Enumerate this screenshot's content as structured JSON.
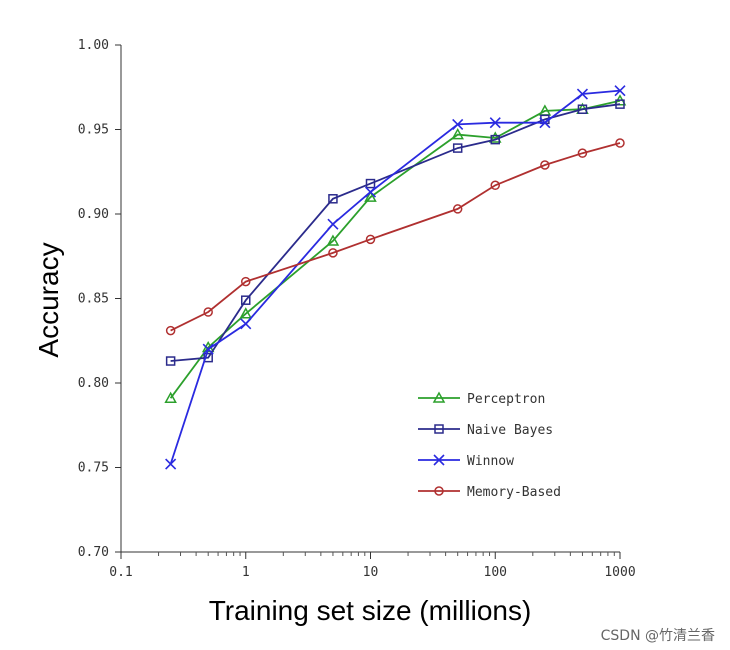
{
  "chart_data": {
    "type": "line",
    "title": "",
    "xlabel": "Training set size (millions)",
    "ylabel": "Accuracy",
    "x_scale": "log",
    "xlim": [
      0.1,
      1000
    ],
    "ylim": [
      0.7,
      1.0
    ],
    "x_ticks": [
      "0.1",
      "1",
      "10",
      "100",
      "1000"
    ],
    "y_ticks": [
      "0.70",
      "0.75",
      "0.80",
      "0.85",
      "0.90",
      "0.95",
      "1.00"
    ],
    "grid": false,
    "legend_position": "lower-right",
    "series": [
      {
        "name": "Perceptron",
        "color": "#2ca02c",
        "marker": "triangle",
        "x": [
          0.25,
          0.5,
          1,
          5,
          10,
          50,
          100,
          250,
          500,
          1000
        ],
        "y": [
          0.791,
          0.821,
          0.841,
          0.884,
          0.91,
          0.947,
          0.945,
          0.961,
          0.962,
          0.967
        ]
      },
      {
        "name": "Naive Bayes",
        "color": "#2b2b8c",
        "marker": "square",
        "x": [
          0.25,
          0.5,
          1,
          5,
          10,
          50,
          100,
          250,
          500,
          1000
        ],
        "y": [
          0.813,
          0.815,
          0.849,
          0.909,
          0.918,
          0.939,
          0.944,
          0.956,
          0.962,
          0.965
        ]
      },
      {
        "name": "Winnow",
        "color": "#2a2ae0",
        "marker": "x",
        "x": [
          0.25,
          0.5,
          1,
          5,
          10,
          50,
          100,
          250,
          500,
          1000
        ],
        "y": [
          0.752,
          0.82,
          0.835,
          0.894,
          0.913,
          0.953,
          0.954,
          0.954,
          0.971,
          0.973
        ]
      },
      {
        "name": "Memory-Based",
        "color": "#b03030",
        "marker": "circle",
        "x": [
          0.25,
          0.5,
          1,
          5,
          10,
          50,
          100,
          250,
          500,
          1000
        ],
        "y": [
          0.831,
          0.842,
          0.86,
          0.877,
          0.885,
          0.903,
          0.917,
          0.929,
          0.936,
          0.942
        ]
      }
    ],
    "legend_labels": [
      "Perceptron",
      "Naive Bayes",
      "Winnow",
      "Memory-Based"
    ]
  },
  "watermark": "CSDN @竹清兰香"
}
